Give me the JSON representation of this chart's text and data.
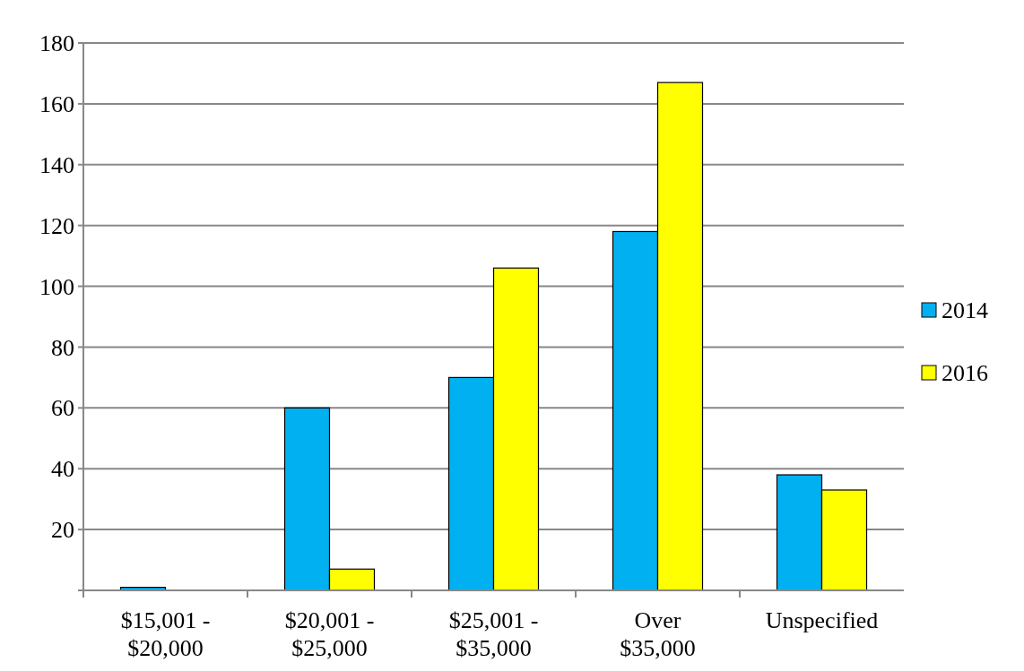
{
  "chart_data": {
    "type": "bar",
    "categories": [
      "$15,001 - $20,000",
      "$20,001 - $25,000",
      "$25,001 - $35,000",
      "Over $35,000",
      "Unspecified"
    ],
    "series": [
      {
        "name": "2014",
        "color": "#00b0f0",
        "values": [
          1,
          60,
          70,
          118,
          38
        ]
      },
      {
        "name": "2016",
        "color": "#ffff00",
        "values": [
          0,
          7,
          106,
          167,
          33
        ]
      }
    ],
    "ylim": [
      0,
      180
    ],
    "yticks": [
      {
        "value": 0,
        "label": null
      },
      20,
      40,
      60,
      80,
      100,
      120,
      140,
      160,
      180
    ],
    "grid": "y",
    "legend": "right"
  }
}
